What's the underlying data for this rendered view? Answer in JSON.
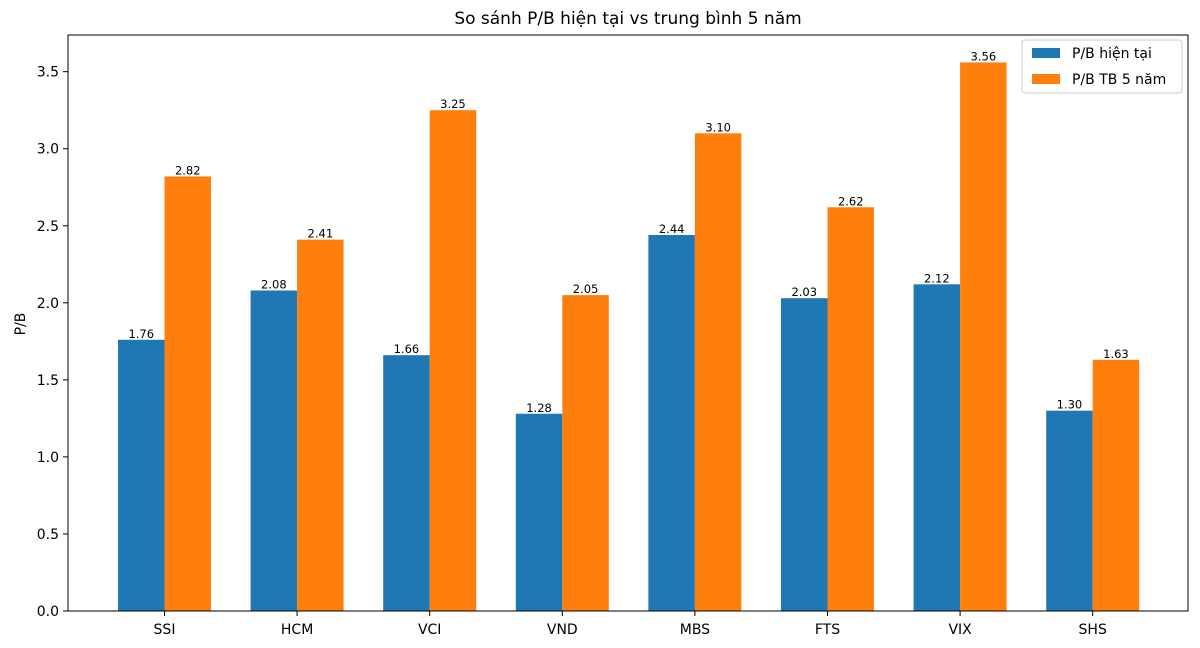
{
  "chart_data": {
    "type": "bar",
    "title": "So sánh P/B hiện tại vs trung bình 5 năm",
    "xlabel": "",
    "ylabel": "P/B",
    "categories": [
      "SSI",
      "HCM",
      "VCI",
      "VND",
      "MBS",
      "FTS",
      "VIX",
      "SHS"
    ],
    "series": [
      {
        "name": "P/B hiện tại",
        "color": "#1f77b4",
        "values": [
          1.76,
          2.08,
          1.66,
          1.28,
          2.44,
          2.03,
          2.12,
          1.3
        ],
        "labels": [
          "1.76",
          "2.08",
          "1.66",
          "1.28",
          "2.44",
          "2.03",
          "2.12",
          "1.30"
        ]
      },
      {
        "name": "P/B TB 5 năm",
        "color": "#ff7f0e",
        "values": [
          2.82,
          2.41,
          3.25,
          2.05,
          3.1,
          2.62,
          3.56,
          1.63
        ],
        "labels": [
          "2.82",
          "2.41",
          "3.25",
          "2.05",
          "3.10",
          "2.62",
          "3.56",
          "1.63"
        ]
      }
    ],
    "ylim": [
      0,
      3.738
    ],
    "yticks": [
      "0.0",
      "0.5",
      "1.0",
      "1.5",
      "2.0",
      "2.5",
      "3.0",
      "3.5"
    ],
    "legend_position": "top-right",
    "grid": false
  }
}
